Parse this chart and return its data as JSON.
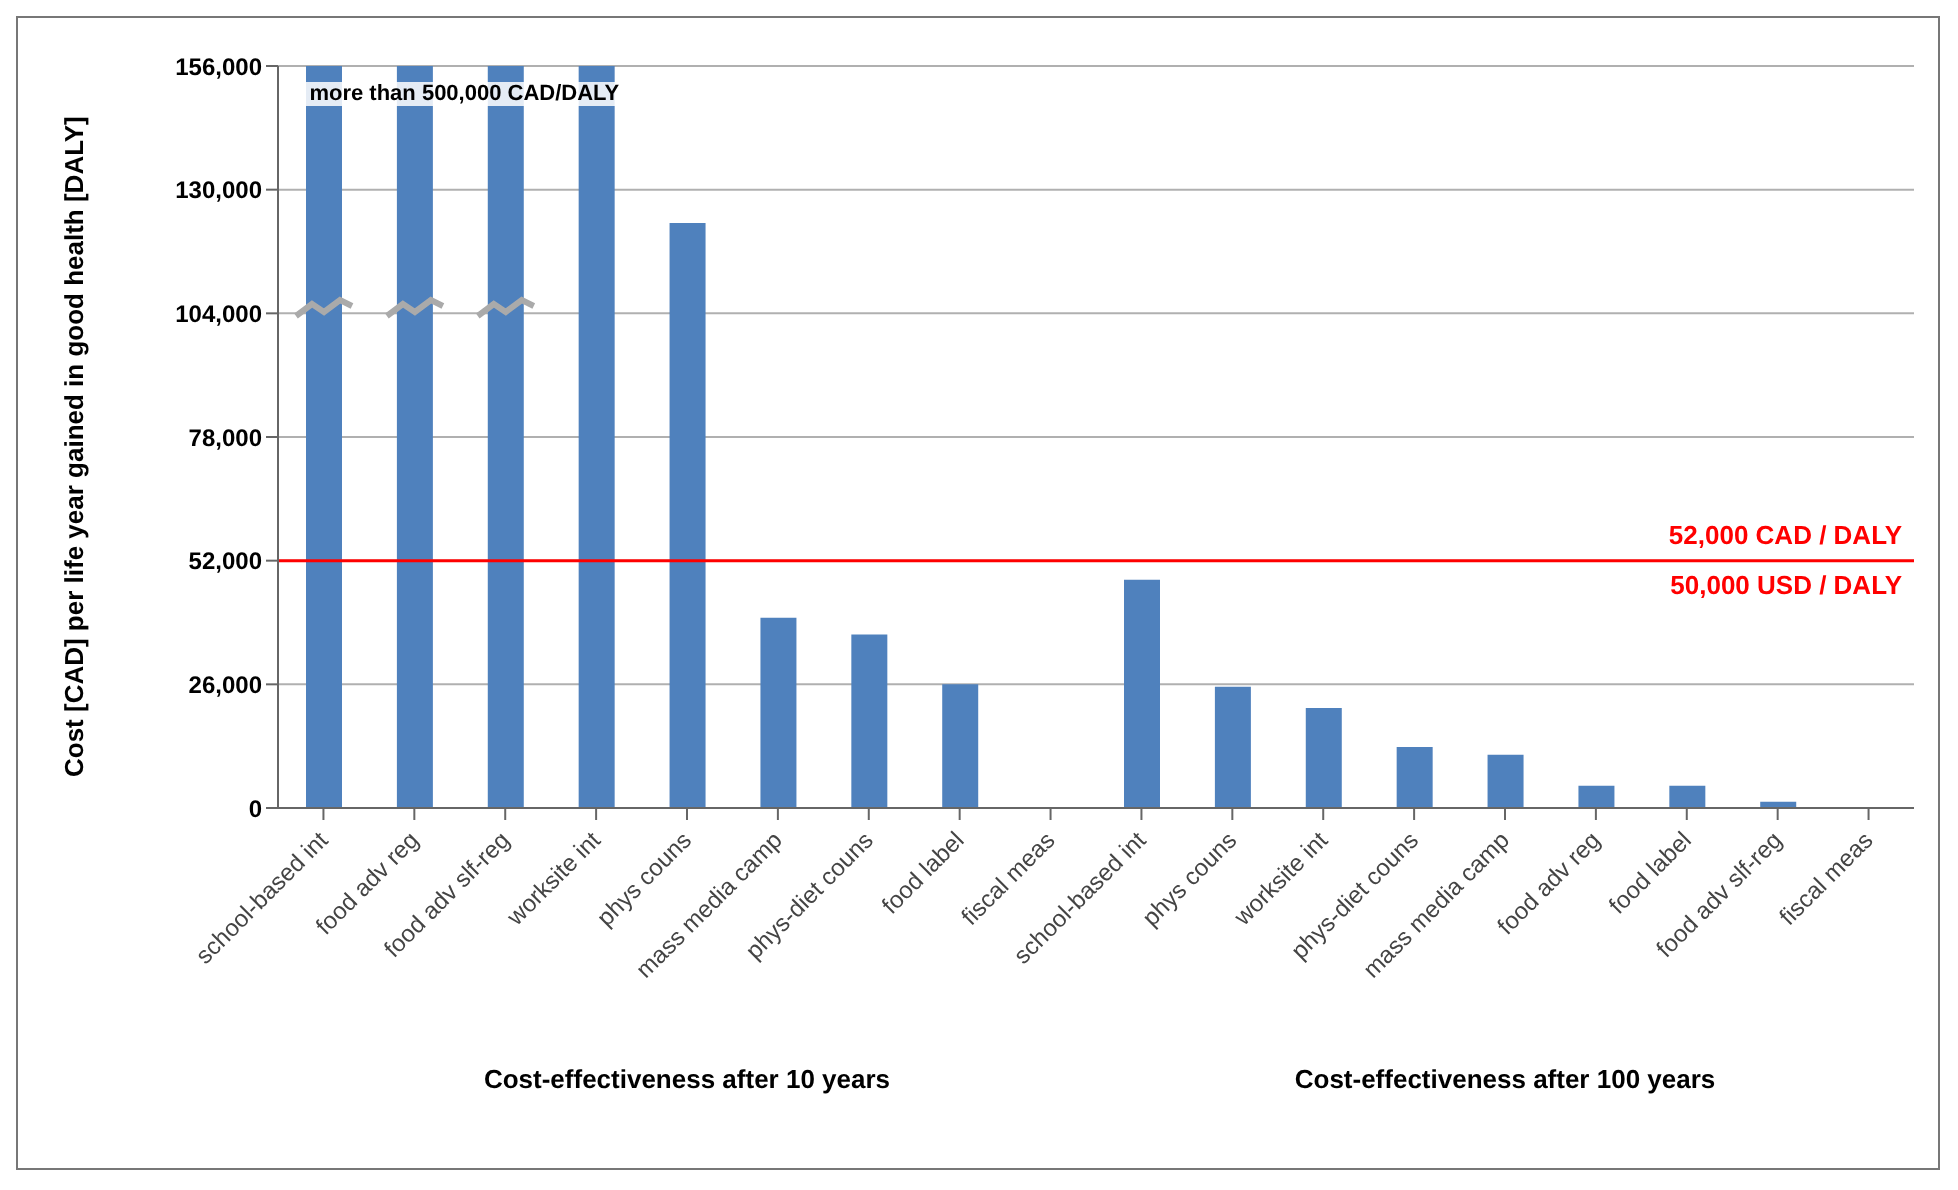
{
  "chart_data": {
    "type": "bar",
    "ylabel": "Cost [CAD] per life year gained in good health [DALY]",
    "categories": [
      "school-based int",
      "food adv reg",
      "food adv slf-reg",
      "worksite int",
      "phys couns",
      "mass media camp",
      "phys-diet couns",
      "food label",
      "fiscal meas",
      "school-based int",
      "phys couns",
      "worksite int",
      "phys-diet couns",
      "mass media camp",
      "food adv reg",
      "food label",
      "food adv slf-reg",
      "fiscal meas"
    ],
    "values": [
      156000,
      156000,
      156000,
      156000,
      123000,
      40000,
      36500,
      26000,
      0,
      48000,
      25500,
      21000,
      12800,
      11200,
      4700,
      4700,
      1300,
      0
    ],
    "color": "#4f81bd",
    "ylim": [
      0,
      156000
    ],
    "yticks": [
      {
        "value": 0,
        "label": "0"
      },
      {
        "value": 26000,
        "label": "26,000"
      },
      {
        "value": 52000,
        "label": "52,000"
      },
      {
        "value": 78000,
        "label": "78,000"
      },
      {
        "value": 104000,
        "label": "104,000"
      },
      {
        "value": 130000,
        "label": "130,000"
      },
      {
        "value": 156000,
        "label": "156,000"
      }
    ],
    "grid": "y",
    "ref_lines": [
      {
        "axis": "y",
        "value": 52000,
        "label": "52,000 CAD / DALY",
        "color": "#ff0000"
      }
    ],
    "annotations": [
      "more than 500,000 CAD/DALY",
      {
        "text": "50,000 USD / DALY",
        "y": 52000
      },
      "Cost-effectiveness after 10 years",
      "Cost-effectiveness after 100 years"
    ]
  }
}
